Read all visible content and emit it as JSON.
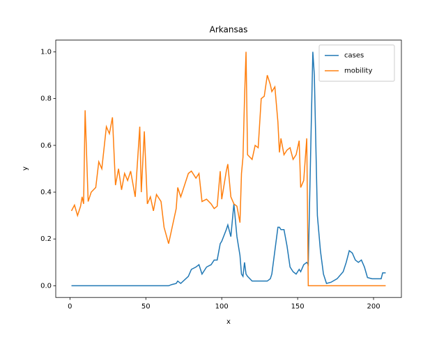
{
  "chart_data": {
    "type": "line",
    "title": "Arkansas",
    "x_label": "x",
    "y_label": "y",
    "x": [
      1,
      3,
      5,
      7,
      8,
      9,
      10,
      12,
      14,
      17,
      19,
      21,
      24,
      26,
      28,
      30,
      32,
      34,
      36,
      38,
      40,
      43,
      46,
      47,
      49,
      51,
      53,
      55,
      57,
      60,
      62,
      65,
      67,
      70,
      71,
      73,
      78,
      80,
      83,
      85,
      87,
      90,
      93,
      95,
      97,
      99,
      100,
      103,
      104,
      106,
      108,
      110,
      112,
      113,
      114,
      115,
      116,
      117,
      120,
      122,
      124,
      126,
      128,
      130,
      132,
      133,
      135,
      137,
      138,
      139,
      141,
      143,
      145,
      147,
      149,
      151,
      152,
      154,
      156,
      157,
      159,
      160,
      161,
      163,
      165,
      167,
      169,
      172,
      176,
      180,
      182,
      184,
      186,
      188,
      190,
      192,
      194,
      196,
      199,
      202,
      205,
      206,
      208
    ],
    "series": [
      {
        "name": "cases",
        "color": "#1f77b4",
        "values": [
          0,
          0,
          0,
          0,
          0,
          0,
          0,
          0,
          0,
          0,
          0,
          0,
          0,
          0,
          0,
          0,
          0,
          0,
          0,
          0,
          0,
          0,
          0,
          0,
          0,
          0,
          0,
          0,
          0,
          0,
          0,
          0,
          0.005,
          0.01,
          0.02,
          0.01,
          0.04,
          0.07,
          0.08,
          0.09,
          0.05,
          0.08,
          0.09,
          0.11,
          0.11,
          0.18,
          0.19,
          0.24,
          0.26,
          0.21,
          0.35,
          0.21,
          0.13,
          0.05,
          0.04,
          0.1,
          0.05,
          0.04,
          0.02,
          0.02,
          0.02,
          0.02,
          0.02,
          0.02,
          0.03,
          0.05,
          0.15,
          0.25,
          0.25,
          0.24,
          0.24,
          0.17,
          0.08,
          0.06,
          0.05,
          0.07,
          0.06,
          0.09,
          0.1,
          0.09,
          0.7,
          1.0,
          0.9,
          0.3,
          0.15,
          0.05,
          0.01,
          0.015,
          0.03,
          0.06,
          0.1,
          0.15,
          0.14,
          0.11,
          0.1,
          0.11,
          0.08,
          0.035,
          0.03,
          0.03,
          0.03,
          0.055,
          0.055
        ]
      },
      {
        "name": "mobility",
        "color": "#ff7f0e",
        "values": [
          0.32,
          0.345,
          0.3,
          0.34,
          0.38,
          0.35,
          0.75,
          0.36,
          0.4,
          0.42,
          0.53,
          0.5,
          0.68,
          0.65,
          0.72,
          0.43,
          0.5,
          0.41,
          0.48,
          0.45,
          0.49,
          0.38,
          0.68,
          0.4,
          0.66,
          0.35,
          0.38,
          0.32,
          0.39,
          0.36,
          0.25,
          0.18,
          0.24,
          0.33,
          0.42,
          0.38,
          0.48,
          0.49,
          0.46,
          0.48,
          0.36,
          0.37,
          0.35,
          0.33,
          0.34,
          0.49,
          0.37,
          0.49,
          0.52,
          0.38,
          0.35,
          0.34,
          0.27,
          0.48,
          0.55,
          0.8,
          1.0,
          0.56,
          0.54,
          0.6,
          0.59,
          0.8,
          0.81,
          0.9,
          0.86,
          0.83,
          0.85,
          0.7,
          0.57,
          0.63,
          0.56,
          0.58,
          0.59,
          0.54,
          0.56,
          0.62,
          0.42,
          0.45,
          0.63,
          0,
          0,
          0,
          0,
          0,
          0,
          0,
          0,
          0,
          0,
          0,
          0,
          0,
          0,
          0,
          0,
          0,
          0,
          0,
          0,
          0,
          0,
          0,
          0
        ]
      }
    ],
    "xlim": [
      -9.35,
      218.35
    ],
    "ylim": [
      -0.05,
      1.05
    ],
    "xticks": [
      0,
      50,
      100,
      150,
      200
    ],
    "yticks": [
      {
        "value": 0,
        "label": "0.0"
      },
      0.2,
      0.4,
      0.6,
      0.8,
      {
        "value": 1,
        "label": "1.0"
      }
    ],
    "legend": "upper right"
  }
}
